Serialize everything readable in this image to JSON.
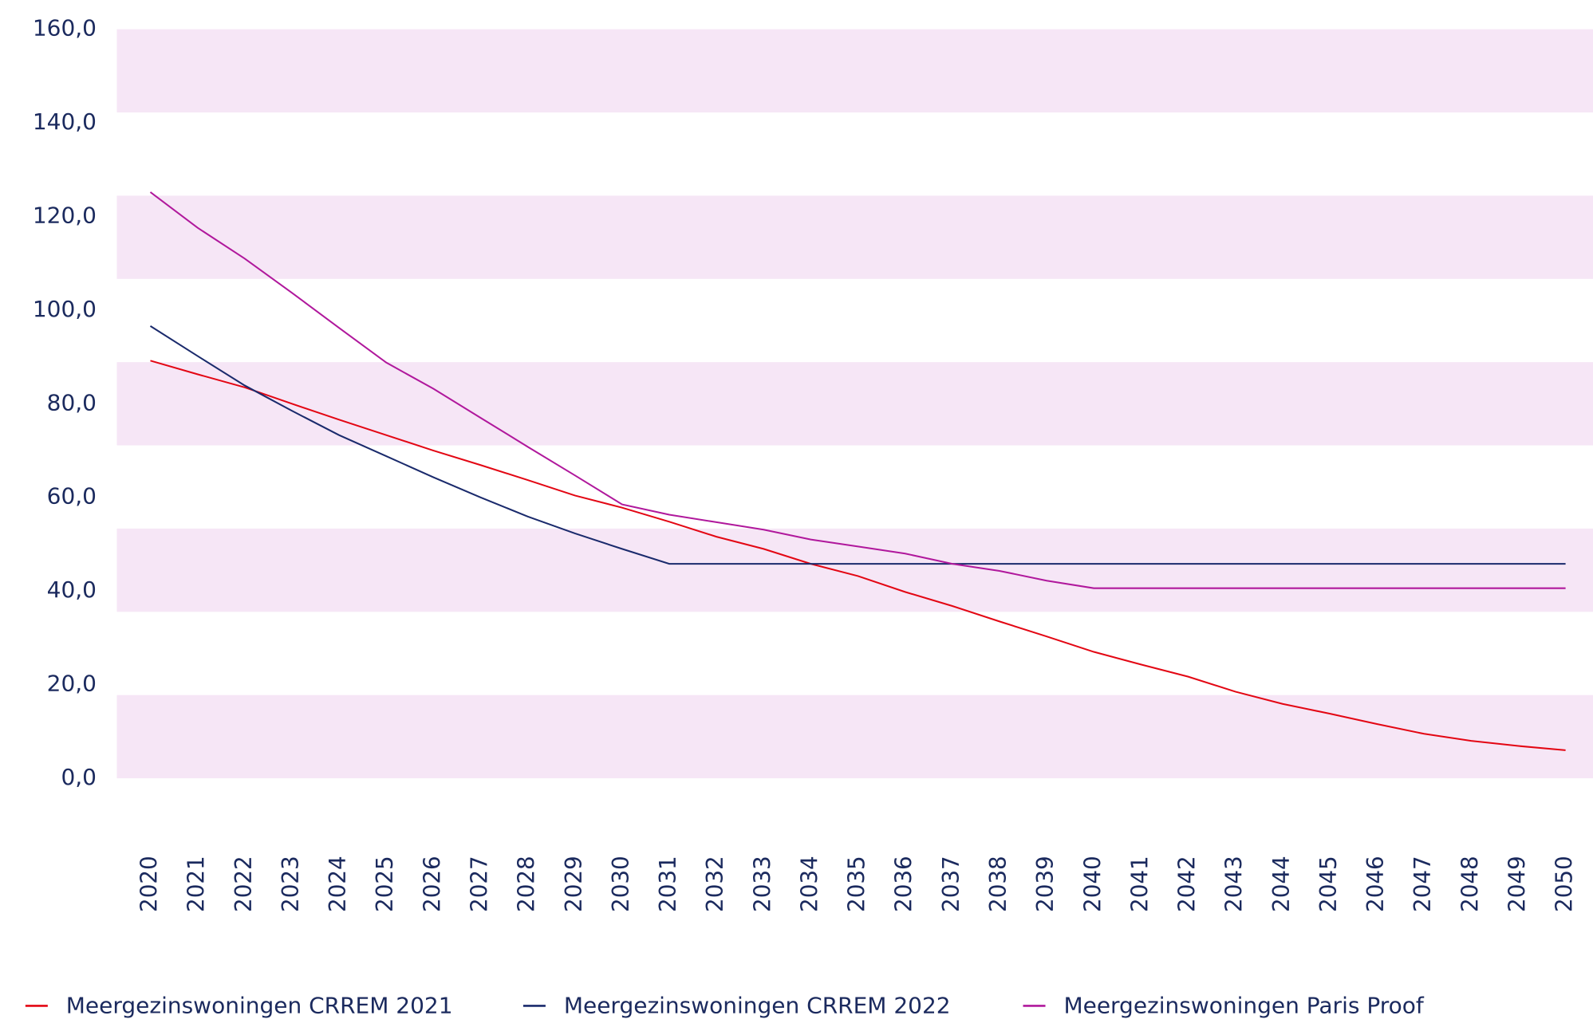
{
  "chart_data": {
    "type": "line",
    "categories": [
      "2020",
      "2021",
      "2022",
      "2023",
      "2024",
      "2025",
      "2026",
      "2027",
      "2028",
      "2029",
      "2030",
      "2031",
      "2032",
      "2033",
      "2034",
      "2035",
      "2036",
      "2037",
      "2038",
      "2039",
      "2040",
      "2041",
      "2042",
      "2043",
      "2044",
      "2045",
      "2046",
      "2047",
      "2048",
      "2049",
      "2050"
    ],
    "series": [
      {
        "name": "Meergezinswoningen CRREM 2021",
        "color": "#e30613",
        "values": [
          89.2,
          86.3,
          83.5,
          80.0,
          76.6,
          73.3,
          70.0,
          66.9,
          63.7,
          60.4,
          57.8,
          54.8,
          51.6,
          49.0,
          45.8,
          43.2,
          39.8,
          36.8,
          33.5,
          30.3,
          27.0,
          24.3,
          21.7,
          18.5,
          15.9,
          13.8,
          11.6,
          9.5,
          8.0,
          6.9,
          6.0
        ]
      },
      {
        "name": "Meergezinswoningen CRREM 2022",
        "color": "#1a2a6c",
        "values": [
          96.6,
          90.2,
          83.9,
          78.5,
          73.3,
          68.8,
          64.3,
          60.0,
          55.9,
          52.3,
          49.0,
          45.8,
          45.8,
          45.8,
          45.8,
          45.8,
          45.8,
          45.8,
          45.8,
          45.8,
          45.8,
          45.8,
          45.8,
          45.8,
          45.8,
          45.8,
          45.8,
          45.8,
          45.8,
          45.8,
          45.8
        ]
      },
      {
        "name": "Meergezinswoningen Paris Proof",
        "color": "#b0189c",
        "values": [
          125.2,
          117.6,
          111.0,
          103.7,
          96.2,
          88.8,
          83.2,
          77.0,
          70.8,
          64.7,
          58.5,
          56.3,
          54.7,
          53.1,
          51.0,
          49.5,
          48.0,
          45.8,
          44.3,
          42.2,
          40.6,
          40.6,
          40.6,
          40.6,
          40.6,
          40.6,
          40.6,
          40.6,
          40.6,
          40.6,
          40.6
        ]
      }
    ],
    "ylim": [
      0,
      160
    ],
    "yticks": [
      {
        "value": 0,
        "label": "0,0"
      },
      {
        "value": 20,
        "label": "20,0"
      },
      {
        "value": 40,
        "label": "40,0"
      },
      {
        "value": 60,
        "label": "60,0"
      },
      {
        "value": 80,
        "label": "80,0"
      },
      {
        "value": 100,
        "label": "100,0"
      },
      {
        "value": 120,
        "label": "120,0"
      },
      {
        "value": 140,
        "label": "140,0"
      },
      {
        "value": 160,
        "label": "160,0"
      }
    ],
    "legend": "bottom"
  }
}
